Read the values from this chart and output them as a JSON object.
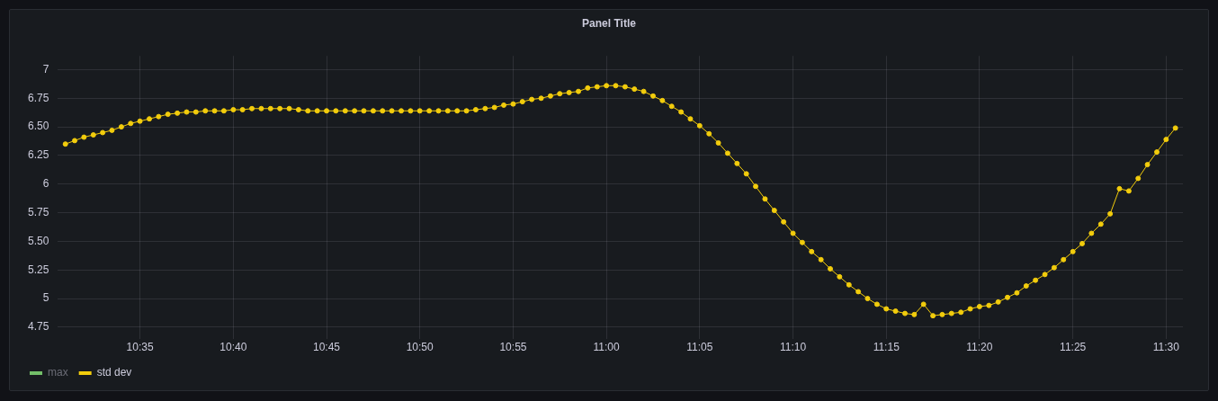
{
  "chart_data": {
    "type": "line",
    "title": "Panel Title",
    "x": [
      10.5167,
      10.525,
      10.5333,
      10.5417,
      10.55,
      10.5583,
      10.5667,
      10.575,
      10.5833,
      10.5917,
      10.6,
      10.6083,
      10.6167,
      10.625,
      10.6333,
      10.6417,
      10.65,
      10.6583,
      10.6667,
      10.675,
      10.6833,
      10.6917,
      10.7,
      10.7083,
      10.7167,
      10.725,
      10.7333,
      10.7417,
      10.75,
      10.7583,
      10.7667,
      10.775,
      10.7833,
      10.7917,
      10.8,
      10.8083,
      10.8167,
      10.825,
      10.8333,
      10.8417,
      10.85,
      10.8583,
      10.8667,
      10.875,
      10.8833,
      10.8917,
      10.9,
      10.9083,
      10.9167,
      10.925,
      10.9333,
      10.9417,
      10.95,
      10.9583,
      10.9667,
      10.975,
      10.9833,
      10.9917,
      11,
      11.0083,
      11.0167,
      11.025,
      11.0333,
      11.0417,
      11.05,
      11.0583,
      11.0667,
      11.075,
      11.0833,
      11.0917,
      11.1,
      11.1083,
      11.1167,
      11.125,
      11.1333,
      11.1417,
      11.15,
      11.1583,
      11.1667,
      11.175,
      11.1833,
      11.1917,
      11.2,
      11.2083,
      11.2167,
      11.225,
      11.2333,
      11.2417,
      11.25,
      11.2583,
      11.2667,
      11.275,
      11.2833,
      11.2917,
      11.3,
      11.3083,
      11.3167,
      11.325,
      11.3333,
      11.3417,
      11.35,
      11.3583,
      11.3667,
      11.375,
      11.3833,
      11.3917,
      11.4,
      11.4083,
      11.4167,
      11.425,
      11.4333,
      11.4417,
      11.45,
      11.4583,
      11.4667,
      11.475,
      11.4833,
      11.4917,
      11.5,
      11.5083
    ],
    "series": [
      {
        "name": "max",
        "color": "#73bf69",
        "values": [
          null,
          null,
          null,
          null,
          null,
          null,
          null,
          null,
          null,
          null,
          null,
          null,
          null,
          null,
          null,
          null,
          null,
          null,
          null,
          null,
          null,
          null,
          null,
          null,
          null,
          null,
          null,
          null,
          null,
          null,
          null,
          null,
          null,
          null,
          null,
          null,
          null,
          null,
          null,
          null,
          null,
          null,
          null,
          null,
          null,
          null,
          null,
          null,
          null,
          null,
          null,
          null,
          null,
          null,
          null,
          null,
          null,
          null,
          null,
          null,
          null,
          null,
          null,
          null,
          null,
          null,
          null,
          null,
          null,
          null,
          null,
          null,
          null,
          null,
          null,
          null,
          null,
          null,
          null,
          null,
          null,
          null,
          null,
          null,
          null,
          null,
          null,
          null,
          null,
          null,
          null,
          null,
          null,
          null,
          null,
          null,
          null,
          null,
          null,
          null,
          null,
          null,
          null,
          null,
          null,
          null,
          null,
          null,
          null,
          null,
          null,
          null,
          null,
          null,
          null,
          null,
          null,
          null,
          null,
          null
        ]
      },
      {
        "name": "std dev",
        "color": "#f2cc0c",
        "values": [
          6.35,
          6.38,
          6.41,
          6.43,
          6.45,
          6.47,
          6.5,
          6.53,
          6.55,
          6.57,
          6.59,
          6.61,
          6.62,
          6.63,
          6.63,
          6.64,
          6.64,
          6.64,
          6.65,
          6.65,
          6.66,
          6.66,
          6.66,
          6.66,
          6.66,
          6.65,
          6.64,
          6.64,
          6.64,
          6.64,
          6.64,
          6.64,
          6.64,
          6.64,
          6.64,
          6.64,
          6.64,
          6.64,
          6.64,
          6.64,
          6.64,
          6.64,
          6.64,
          6.64,
          6.65,
          6.66,
          6.67,
          6.69,
          6.7,
          6.72,
          6.74,
          6.75,
          6.77,
          6.79,
          6.8,
          6.81,
          6.84,
          6.85,
          6.86,
          6.86,
          6.85,
          6.83,
          6.81,
          6.77,
          6.73,
          6.68,
          6.63,
          6.57,
          6.51,
          6.44,
          6.36,
          6.27,
          6.18,
          6.09,
          5.98,
          5.87,
          5.77,
          5.67,
          5.57,
          5.49,
          5.41,
          5.34,
          5.26,
          5.19,
          5.12,
          5.06,
          5.0,
          4.95,
          4.91,
          4.89,
          4.87,
          4.86,
          4.95,
          4.85,
          4.86,
          4.87,
          4.88,
          4.91,
          4.93,
          4.94,
          4.97,
          5.01,
          5.05,
          5.11,
          5.16,
          5.21,
          5.27,
          5.34,
          5.41,
          5.48,
          5.57,
          5.65,
          5.74,
          5.96,
          5.94,
          6.05,
          6.17,
          6.28,
          6.39,
          6.49
        ]
      }
    ],
    "xlim": [
      10.51,
      11.515
    ],
    "xticks": [
      {
        "value": 10.5833,
        "label": "10:35"
      },
      {
        "value": 10.6667,
        "label": "10:40"
      },
      {
        "value": 10.75,
        "label": "10:45"
      },
      {
        "value": 10.8333,
        "label": "10:50"
      },
      {
        "value": 10.9167,
        "label": "10:55"
      },
      {
        "value": 11,
        "label": "11:00"
      },
      {
        "value": 11.0833,
        "label": "11:05"
      },
      {
        "value": 11.1667,
        "label": "11:10"
      },
      {
        "value": 11.25,
        "label": "11:15"
      },
      {
        "value": 11.3333,
        "label": "11:20"
      },
      {
        "value": 11.4167,
        "label": "11:25"
      },
      {
        "value": 11.5,
        "label": "11:30"
      }
    ],
    "ylim": [
      4.65,
      7.12
    ],
    "yticks": [
      {
        "value": 4.75,
        "label": "4.75"
      },
      5,
      {
        "value": 5.25,
        "label": "5.25"
      },
      {
        "value": 5.5,
        "label": "5.50"
      },
      {
        "value": 5.75,
        "label": "5.75"
      },
      6,
      {
        "value": 6.25,
        "label": "6.25"
      },
      {
        "value": 6.5,
        "label": "6.50"
      },
      {
        "value": 6.75,
        "label": "6.75"
      },
      7
    ],
    "grid": true,
    "legend": "bottom left",
    "marker": "circle",
    "line_style": "solid"
  }
}
